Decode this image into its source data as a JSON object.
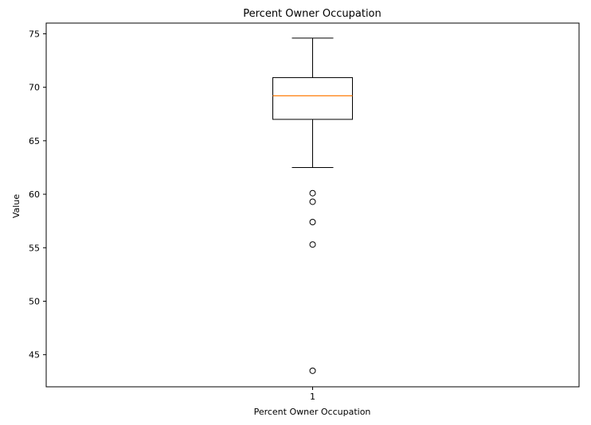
{
  "chart_data": {
    "type": "box",
    "title": "Percent Owner Occupation",
    "xlabel": "Percent Owner Occupation",
    "ylabel": "Value",
    "categories": [
      "1"
    ],
    "ylim": [
      42,
      76
    ],
    "yticks": [
      45,
      50,
      55,
      60,
      65,
      70,
      75
    ],
    "ytick_labels": [
      "45",
      "50",
      "55",
      "60",
      "65",
      "70",
      "75"
    ],
    "grid": false,
    "boxes": [
      {
        "category": "1",
        "whisker_low": 62.5,
        "q1": 67.0,
        "median": 69.2,
        "q3": 70.9,
        "whisker_high": 74.6,
        "outliers": [
          60.1,
          59.3,
          57.4,
          55.3,
          43.5
        ]
      }
    ],
    "colors": {
      "box": "#000000",
      "median": "#ff7f0e",
      "outlier": "#000000"
    }
  }
}
